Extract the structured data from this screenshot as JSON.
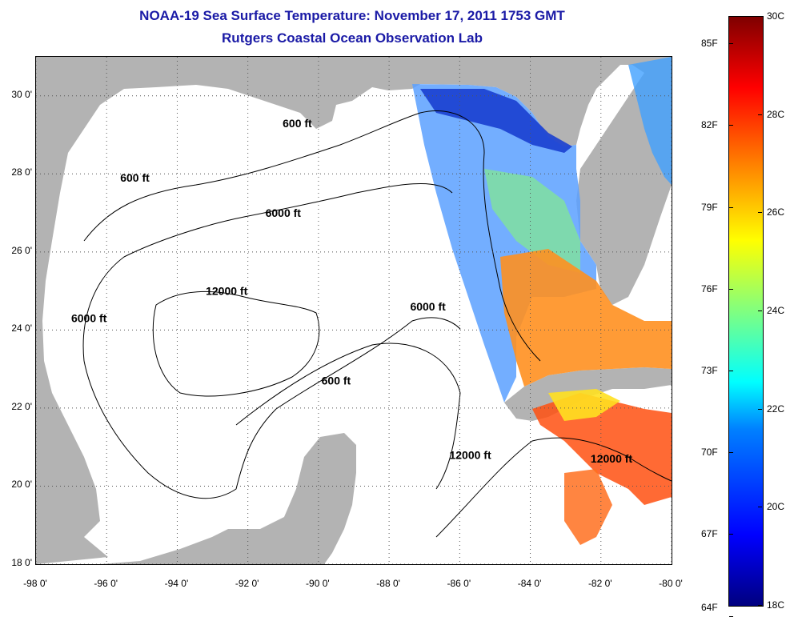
{
  "title": {
    "line1": "NOAA-19 Sea Surface Temperature:  November 17, 2011 1753 GMT",
    "line2": "Rutgers Coastal Ocean Observation Lab"
  },
  "map": {
    "lon_range": [
      -98,
      -80
    ],
    "lat_range": [
      18,
      31
    ],
    "lon_ticks": [
      {
        "value": -98,
        "label": "-98 0'"
      },
      {
        "value": -96,
        "label": "-96 0'"
      },
      {
        "value": -94,
        "label": "-94 0'"
      },
      {
        "value": -92,
        "label": "-92 0'"
      },
      {
        "value": -90,
        "label": "-90 0'"
      },
      {
        "value": -88,
        "label": "-88 0'"
      },
      {
        "value": -86,
        "label": "-86 0'"
      },
      {
        "value": -84,
        "label": "-84 0'"
      },
      {
        "value": -82,
        "label": "-82 0'"
      },
      {
        "value": -80,
        "label": "-80 0'"
      }
    ],
    "lat_ticks": [
      {
        "value": 30,
        "label": "30 0'"
      },
      {
        "value": 28,
        "label": "28 0'"
      },
      {
        "value": 26,
        "label": "26 0'"
      },
      {
        "value": 24,
        "label": "24 0'"
      },
      {
        "value": 22,
        "label": "22 0'"
      },
      {
        "value": 20,
        "label": "20 0'"
      },
      {
        "value": 18,
        "label": "18 0'"
      }
    ],
    "contour_labels": [
      {
        "text": "600 ft",
        "lon": -90.6,
        "lat": 29.2
      },
      {
        "text": "600 ft",
        "lon": -95.2,
        "lat": 27.8
      },
      {
        "text": "6000 ft",
        "lon": -91.0,
        "lat": 26.9
      },
      {
        "text": "12000 ft",
        "lon": -92.6,
        "lat": 24.9
      },
      {
        "text": "6000 ft",
        "lon": -86.9,
        "lat": 24.5
      },
      {
        "text": "6000 ft",
        "lon": -96.5,
        "lat": 24.2
      },
      {
        "text": "600 ft",
        "lon": -89.5,
        "lat": 22.6
      },
      {
        "text": "12000 ft",
        "lon": -85.7,
        "lat": 20.7
      },
      {
        "text": "12000 ft",
        "lon": -81.7,
        "lat": 20.6
      }
    ],
    "colors": {
      "land": "#b3b3b3",
      "water": "#ffffff",
      "grid": "#555555"
    }
  },
  "colorbar": {
    "fahrenheit": [
      {
        "label": "85F",
        "value": 85
      },
      {
        "label": "82F",
        "value": 82
      },
      {
        "label": "79F",
        "value": 79
      },
      {
        "label": "76F",
        "value": 76
      },
      {
        "label": "73F",
        "value": 73
      },
      {
        "label": "70F",
        "value": 70
      },
      {
        "label": "67F",
        "value": 67
      },
      {
        "label": "64F",
        "value": 64
      }
    ],
    "celsius": [
      {
        "label": "30C",
        "value": 30
      },
      {
        "label": "28C",
        "value": 28
      },
      {
        "label": "26C",
        "value": 26
      },
      {
        "label": "24C",
        "value": 24
      },
      {
        "label": "22C",
        "value": 22
      },
      {
        "label": "20C",
        "value": 20
      },
      {
        "label": "18C",
        "value": 18
      }
    ],
    "range_c": [
      18,
      30
    ]
  }
}
